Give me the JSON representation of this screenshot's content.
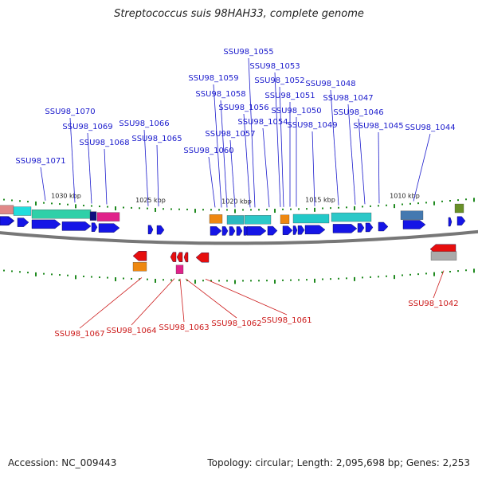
{
  "title": "Streptococcus suis 98HAH33, complete genome",
  "footer": {
    "accession": "Accession: NC_009443",
    "summary": "Topology: circular; Length: 2,095,698 bp; Genes: 2,253"
  },
  "colors": {
    "backbone": "#777777",
    "forward_arrow": "#1515e6",
    "reverse_arrow": "#e60e0e",
    "label_forward": "#1a1acc",
    "label_reverse": "#cc1a1a",
    "tick": "#1f8a1f"
  },
  "kbp_markers": [
    "1030 kbp",
    "1025 kbp",
    "1020 kbp",
    "1015 kbp",
    "1010 kbp"
  ],
  "gene_labels_forward": [
    "SSU98_1071",
    "SSU98_1070",
    "SSU98_1069",
    "SSU98_1068",
    "SSU98_1066",
    "SSU98_1065",
    "SSU98_1060",
    "SSU98_1059",
    "SSU98_1058",
    "SSU98_1057",
    "SSU98_1056",
    "SSU98_1055",
    "SSU98_1054",
    "SSU98_1053",
    "SSU98_1052",
    "SSU98_1051",
    "SSU98_1050",
    "SSU98_1049",
    "SSU98_1048",
    "SSU98_1047",
    "SSU98_1046",
    "SSU98_1045",
    "SSU98_1044"
  ],
  "gene_labels_reverse": [
    "SSU98_1067",
    "SSU98_1064",
    "SSU98_1063",
    "SSU98_1062",
    "SSU98_1061",
    "SSU98_1042"
  ]
}
